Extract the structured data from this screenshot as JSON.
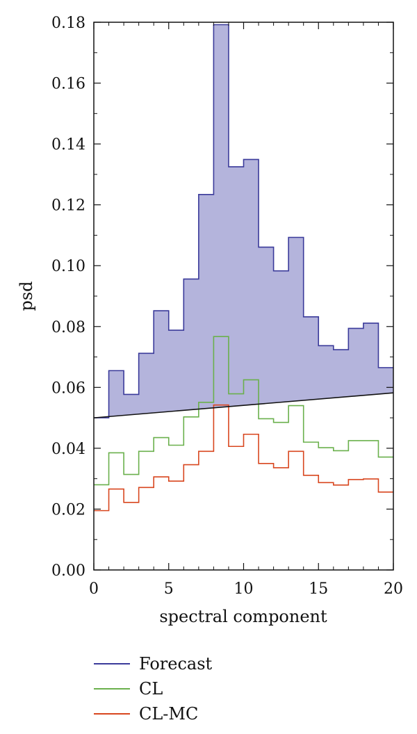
{
  "chart_data": {
    "type": "step",
    "xlabel": "spectral component",
    "ylabel": "psd",
    "xlim": [
      0,
      20
    ],
    "ylim": [
      0,
      0.18
    ],
    "x_ticks": [
      "0",
      "5",
      "10",
      "15",
      "20"
    ],
    "y_ticks": [
      "0.00",
      "0.02",
      "0.04",
      "0.06",
      "0.08",
      "0.10",
      "0.12",
      "0.14",
      "0.16",
      "0.18"
    ],
    "bin_edges": [
      0,
      1,
      2,
      3,
      4,
      5,
      6,
      7,
      8,
      9,
      10,
      11,
      12,
      13,
      14,
      15,
      16,
      17,
      18,
      19,
      20
    ],
    "series": [
      {
        "name": "Forecast",
        "color": "#3a3a9a",
        "fill": "#b4b4dc",
        "values": [
          0.05,
          0.0655,
          0.0577,
          0.0712,
          0.0852,
          0.0788,
          0.0956,
          0.1234,
          0.1792,
          0.1325,
          0.1349,
          0.1061,
          0.0983,
          0.1093,
          0.0832,
          0.0737,
          0.0724,
          0.0794,
          0.0811,
          0.0665
        ]
      },
      {
        "name": "CL",
        "color": "#6ab04c",
        "values": [
          0.028,
          0.0385,
          0.0314,
          0.039,
          0.0435,
          0.041,
          0.0503,
          0.0551,
          0.0767,
          0.0579,
          0.0625,
          0.0497,
          0.0485,
          0.054,
          0.042,
          0.0402,
          0.0392,
          0.0425,
          0.0425,
          0.0371
        ]
      },
      {
        "name": "CL-MC",
        "color": "#d8461e",
        "values": [
          0.0195,
          0.0266,
          0.0222,
          0.0271,
          0.0306,
          0.0292,
          0.0346,
          0.039,
          0.0542,
          0.0406,
          0.0446,
          0.035,
          0.0336,
          0.039,
          0.0311,
          0.0287,
          0.0279,
          0.0297,
          0.0299,
          0.0256
        ]
      }
    ],
    "baseline_line": {
      "color": "#111111",
      "from": [
        0,
        0.05
      ],
      "to": [
        20,
        0.0582
      ]
    },
    "legend_position": "bottom"
  }
}
